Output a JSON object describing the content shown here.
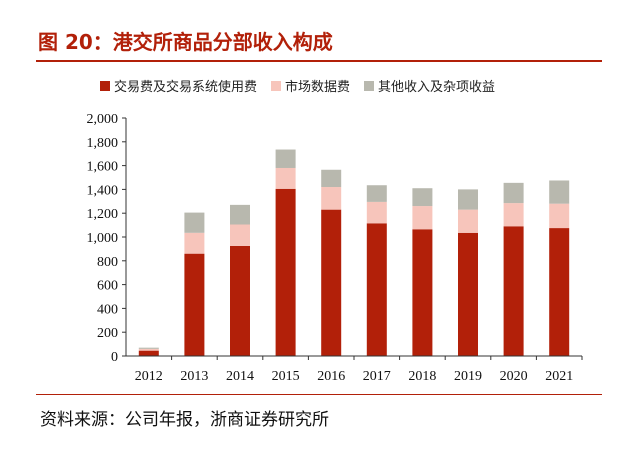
{
  "title": "图 20：港交所商品分部收入构成",
  "source": "资料来源：公司年报，浙商证券研究所",
  "colors": {
    "title": "#b22009",
    "series": [
      "#b22009",
      "#f7c5bb",
      "#b8b8ae"
    ]
  },
  "chart_data": {
    "type": "bar",
    "stacked": true,
    "categories": [
      "2012",
      "2013",
      "2014",
      "2015",
      "2016",
      "2017",
      "2018",
      "2019",
      "2020",
      "2021"
    ],
    "series": [
      {
        "name": "交易费及交易系统使用费",
        "values": [
          45,
          860,
          925,
          1405,
          1230,
          1115,
          1065,
          1035,
          1090,
          1075
        ]
      },
      {
        "name": "市场数据费",
        "values": [
          15,
          175,
          180,
          175,
          190,
          180,
          195,
          195,
          195,
          205
        ]
      },
      {
        "name": "其他收入及杂项收益",
        "values": [
          10,
          170,
          165,
          155,
          145,
          140,
          150,
          170,
          170,
          195
        ]
      }
    ],
    "y_ticks": [
      "0",
      "200",
      "400",
      "600",
      "800",
      "1,000",
      "1,200",
      "1,400",
      "1,600",
      "1,800",
      "2,000"
    ],
    "ylim": [
      0,
      2000
    ],
    "legend_position": "top",
    "grid": false
  }
}
